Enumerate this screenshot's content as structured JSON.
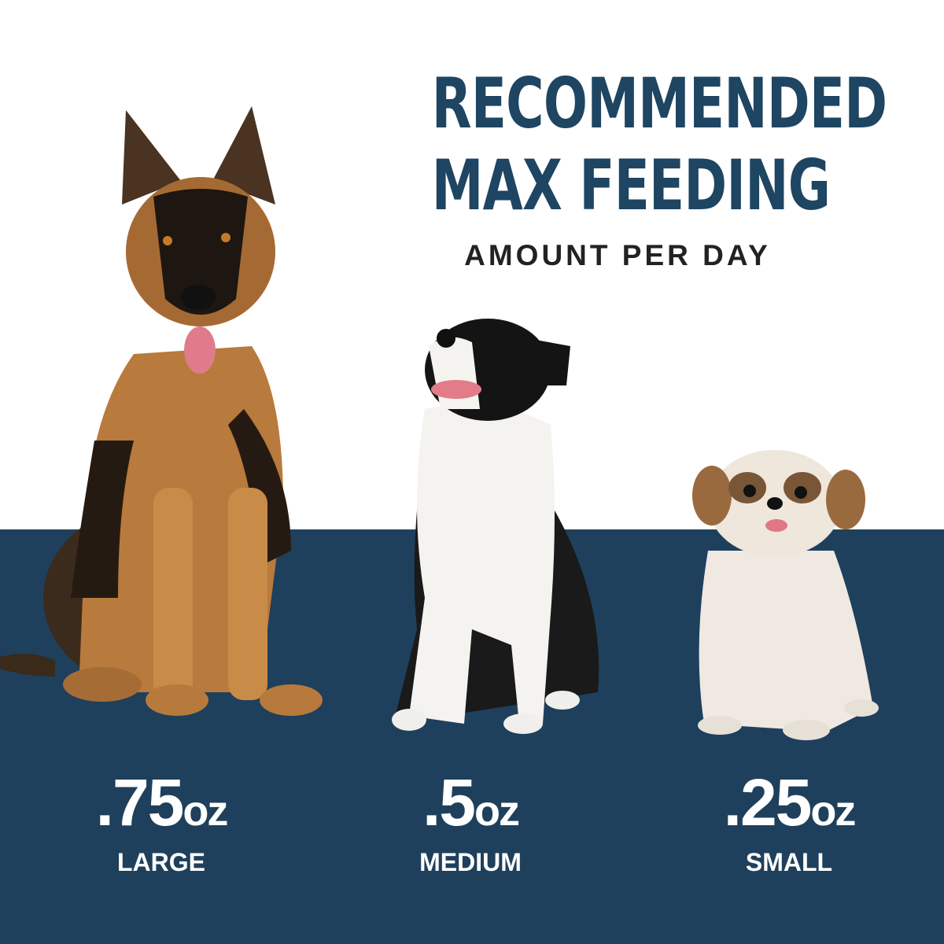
{
  "header": {
    "title_line1": "RECOMMENDED",
    "title_line2": "MAX FEEDING",
    "subtitle": "AMOUNT PER DAY"
  },
  "colors": {
    "navy": "#1f405c",
    "title": "#1e4562",
    "subtitle": "#222222",
    "amount_text": "#ffffff"
  },
  "sizes": [
    {
      "amount": ".75",
      "unit": "oz",
      "label": "LARGE",
      "image": "german-shepherd"
    },
    {
      "amount": ".5",
      "unit": "oz",
      "label": "MEDIUM",
      "image": "border-collie"
    },
    {
      "amount": ".25",
      "unit": "oz",
      "label": "SMALL",
      "image": "shih-tzu"
    }
  ]
}
